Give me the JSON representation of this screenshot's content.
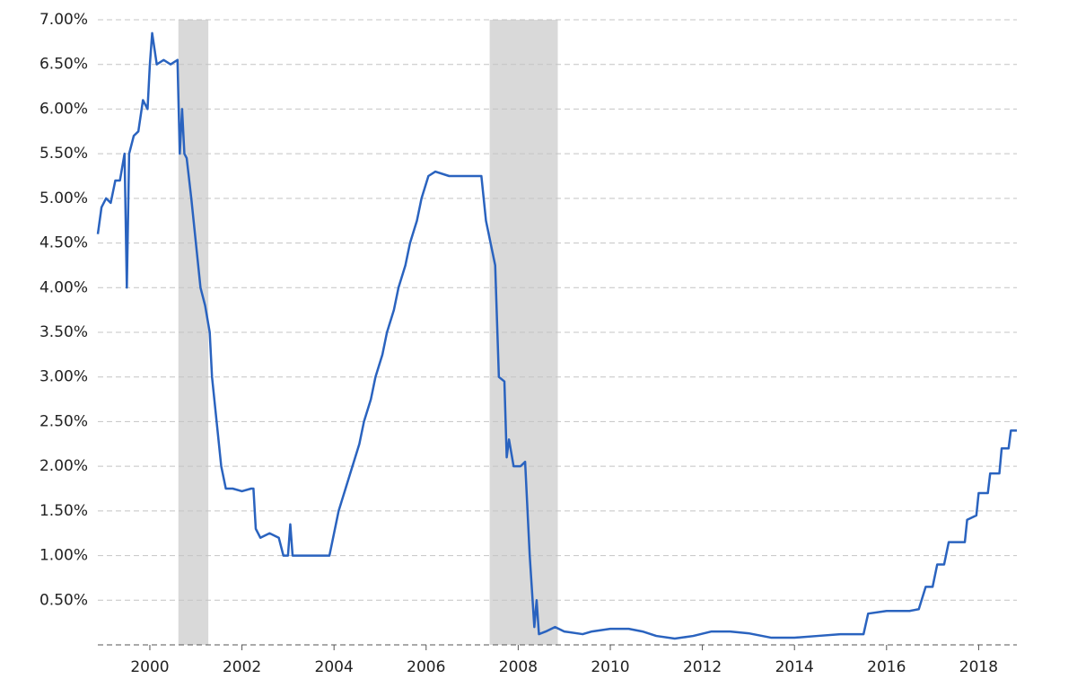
{
  "chart_data": {
    "type": "line",
    "x": [
      1998.87,
      1998.95,
      1999.05,
      1999.15,
      1999.25,
      1999.35,
      1999.45,
      1999.5,
      1999.55,
      1999.65,
      1999.75,
      1999.85,
      1999.95,
      2000.0,
      2000.05,
      2000.15,
      2000.3,
      2000.45,
      2000.6,
      2000.65,
      2000.7,
      2000.75,
      2000.8,
      2000.9,
      2001.0,
      2001.1,
      2001.2,
      2001.3,
      2001.35,
      2001.45,
      2001.55,
      2001.65,
      2001.8,
      2002.0,
      2002.2,
      2002.25,
      2002.3,
      2002.4,
      2002.6,
      2002.8,
      2002.9,
      2003.0,
      2003.05,
      2003.1,
      2003.5,
      2003.9,
      2004.0,
      2004.1,
      2004.25,
      2004.4,
      2004.55,
      2004.65,
      2004.8,
      2004.9,
      2005.05,
      2005.15,
      2005.3,
      2005.4,
      2005.55,
      2005.65,
      2005.8,
      2005.9,
      2006.05,
      2006.2,
      2006.5,
      2006.8,
      2007.0,
      2007.2,
      2007.3,
      2007.4,
      2007.5,
      2007.58,
      2007.7,
      2007.75,
      2007.8,
      2007.9,
      2008.05,
      2008.15,
      2008.25,
      2008.35,
      2008.4,
      2008.45,
      2008.6,
      2008.8,
      2009.0,
      2009.4,
      2009.6,
      2010.0,
      2010.4,
      2010.7,
      2011.0,
      2011.4,
      2011.8,
      2012.2,
      2012.6,
      2013.0,
      2013.5,
      2014.0,
      2014.5,
      2015.0,
      2015.5,
      2015.6,
      2016.0,
      2016.5,
      2016.7,
      2016.85,
      2017.0,
      2017.1,
      2017.25,
      2017.35,
      2017.55,
      2017.7,
      2017.75,
      2017.95,
      2018.0,
      2018.2,
      2018.25,
      2018.45,
      2018.5,
      2018.65,
      2018.7,
      2018.83
    ],
    "y": [
      4.6,
      4.9,
      5.0,
      4.95,
      5.2,
      5.2,
      5.5,
      4.0,
      5.5,
      5.7,
      5.75,
      6.1,
      6.0,
      6.5,
      6.85,
      6.5,
      6.55,
      6.5,
      6.55,
      5.5,
      6.0,
      5.5,
      5.45,
      5.0,
      4.5,
      4.0,
      3.8,
      3.5,
      3.0,
      2.5,
      2.0,
      1.75,
      1.75,
      1.72,
      1.75,
      1.75,
      1.3,
      1.2,
      1.25,
      1.2,
      1.0,
      1.0,
      1.35,
      1.0,
      1.0,
      1.0,
      1.25,
      1.5,
      1.75,
      2.0,
      2.25,
      2.5,
      2.75,
      3.0,
      3.25,
      3.5,
      3.75,
      4.0,
      4.25,
      4.5,
      4.75,
      5.0,
      5.25,
      5.3,
      5.25,
      5.25,
      5.25,
      5.25,
      4.75,
      4.5,
      4.25,
      3.0,
      2.95,
      2.1,
      2.3,
      2.0,
      2.0,
      2.05,
      1.0,
      0.2,
      0.5,
      0.12,
      0.15,
      0.2,
      0.15,
      0.12,
      0.15,
      0.18,
      0.18,
      0.15,
      0.1,
      0.07,
      0.1,
      0.15,
      0.15,
      0.13,
      0.08,
      0.08,
      0.1,
      0.12,
      0.12,
      0.35,
      0.38,
      0.38,
      0.4,
      0.65,
      0.65,
      0.9,
      0.9,
      1.15,
      1.15,
      1.15,
      1.4,
      1.45,
      1.7,
      1.7,
      1.92,
      1.92,
      2.2,
      2.2,
      2.4,
      2.4
    ],
    "color": "#2a63bf",
    "shaded_ranges": [
      [
        2000.62,
        2001.27
      ],
      [
        2007.38,
        2008.86
      ]
    ],
    "shade_color": "#d9d9d9",
    "xlim": [
      1998.87,
      2018.83
    ],
    "xticks": [
      2000,
      2002,
      2004,
      2006,
      2008,
      2010,
      2012,
      2014,
      2016,
      2018
    ],
    "ylim": [
      0,
      7
    ],
    "yticks": [
      {
        "value": 0.5,
        "label": "0.50%"
      },
      {
        "value": 1,
        "label": "1.00%"
      },
      {
        "value": 1.5,
        "label": "1.50%"
      },
      {
        "value": 2,
        "label": "2.00%"
      },
      {
        "value": 2.5,
        "label": "2.50%"
      },
      {
        "value": 3,
        "label": "3.00%"
      },
      {
        "value": 3.5,
        "label": "3.50%"
      },
      {
        "value": 4,
        "label": "4.00%"
      },
      {
        "value": 4.5,
        "label": "4.50%"
      },
      {
        "value": 5,
        "label": "5.00%"
      },
      {
        "value": 5.5,
        "label": "5.50%"
      },
      {
        "value": 6,
        "label": "6.00%"
      },
      {
        "value": 6.5,
        "label": "6.50%"
      },
      {
        "value": 7,
        "label": "7.00%"
      }
    ],
    "grid": true
  }
}
